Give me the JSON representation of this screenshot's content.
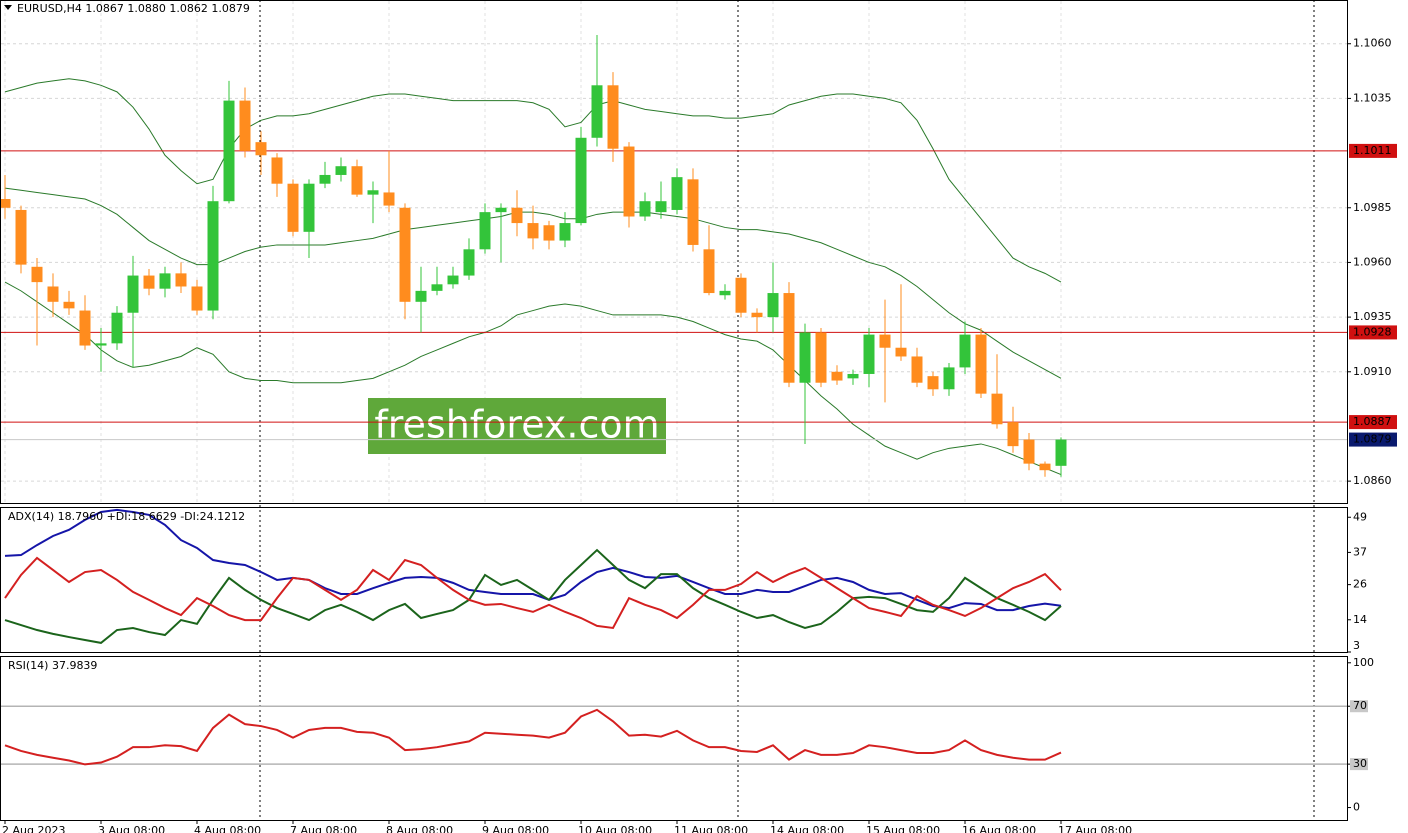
{
  "chart_data": [
    {
      "type": "candlestick",
      "title": "EURUSD,H4  1.0867 1.0880 1.0862 1.0879",
      "annotation": "freshforex.com",
      "categories": [
        "2 Aug 2023",
        null,
        null,
        null,
        null,
        null,
        "3 Aug 08:00",
        null,
        null,
        null,
        null,
        null,
        "4 Aug 08:00",
        null,
        null,
        null,
        null,
        null,
        "7 Aug 08:00",
        null,
        null,
        null,
        null,
        null,
        "8 Aug 08:00",
        null,
        null,
        null,
        null,
        null,
        "9 Aug 08:00",
        null,
        null,
        null,
        null,
        null,
        "10 Aug 08:00",
        null,
        null,
        null,
        null,
        null,
        "11 Aug 08:00",
        null,
        null,
        null,
        null,
        null,
        "14 Aug 08:00",
        null,
        null,
        null,
        null,
        null,
        "15 Aug 08:00",
        null,
        null,
        null,
        null,
        null,
        "16 Aug 08:00",
        null,
        null,
        null,
        null,
        null,
        "17 Aug 08:00"
      ],
      "open": [
        1.0989,
        1.0984,
        1.0958,
        1.0949,
        1.0942,
        1.0938,
        1.0922,
        1.0923,
        1.0937,
        1.0954,
        1.0948,
        1.0955,
        1.0949,
        1.0938,
        1.0988,
        1.1034,
        1.1015,
        1.1008,
        1.0996,
        1.0974,
        1.0996,
        1.1,
        1.1004,
        1.0991,
        1.0992,
        1.0985,
        1.0942,
        1.0947,
        1.095,
        1.0954,
        1.0966,
        1.0983,
        1.0985,
        1.0978,
        1.0977,
        1.097,
        1.0978,
        1.1017,
        1.1041,
        1.1013,
        1.0981,
        1.0983,
        1.0984,
        1.0998,
        1.0966,
        1.0945,
        1.0953,
        1.0937,
        1.0935,
        1.0946,
        1.0905,
        1.0928,
        1.091,
        1.0907,
        1.0909,
        1.0927,
        1.0921,
        1.0917,
        1.0908,
        1.0902,
        1.0912,
        1.0927,
        1.09,
        1.0887,
        1.0879,
        1.0868,
        1.0867
      ],
      "high": [
        1.1,
        1.0986,
        1.0962,
        1.0955,
        1.0947,
        1.0945,
        1.093,
        1.094,
        1.0963,
        1.0957,
        1.0958,
        1.096,
        1.0952,
        1.0995,
        1.1043,
        1.104,
        1.102,
        1.101,
        1.0998,
        1.0998,
        1.1006,
        1.1008,
        1.1007,
        1.0997,
        1.1011,
        1.0987,
        1.0958,
        1.0958,
        1.0958,
        1.0971,
        1.0987,
        1.0987,
        1.0993,
        1.0986,
        1.0979,
        1.0983,
        1.1022,
        1.1064,
        1.1047,
        1.1015,
        1.0992,
        1.0997,
        1.1003,
        1.1003,
        1.0977,
        1.095,
        1.0955,
        1.0939,
        1.096,
        1.0951,
        1.0932,
        1.093,
        1.0913,
        1.0911,
        1.093,
        1.0943,
        1.095,
        1.0921,
        1.091,
        1.0914,
        1.0933,
        1.093,
        1.0918,
        1.0894,
        1.0882,
        1.0869,
        1.088
      ],
      "low": [
        1.098,
        1.0955,
        1.0922,
        1.0935,
        1.0936,
        1.092,
        1.091,
        1.092,
        1.0912,
        1.0945,
        1.0944,
        1.0946,
        1.0936,
        1.0934,
        1.0987,
        1.1008,
        1.1,
        1.099,
        1.0972,
        1.0962,
        1.0994,
        1.0997,
        1.099,
        1.0978,
        1.0983,
        1.0934,
        1.0928,
        1.0945,
        1.0948,
        1.0952,
        1.0964,
        1.096,
        1.0972,
        1.0966,
        1.0966,
        1.0967,
        1.0977,
        1.1013,
        1.1006,
        1.0976,
        1.0979,
        1.098,
        1.0982,
        1.0965,
        1.0945,
        1.0943,
        1.0935,
        1.0928,
        1.0928,
        1.0903,
        1.0877,
        1.0903,
        1.0904,
        1.0904,
        1.0903,
        1.0896,
        1.0915,
        1.0903,
        1.0899,
        1.0899,
        1.0909,
        1.0898,
        1.0884,
        1.0873,
        1.0865,
        1.0862,
        1.0862
      ],
      "close": [
        1.0985,
        1.0959,
        1.0951,
        1.0942,
        1.0939,
        1.0922,
        1.0923,
        1.0937,
        1.0954,
        1.0948,
        1.0955,
        1.0949,
        1.0938,
        1.0988,
        1.1034,
        1.1011,
        1.1009,
        1.0996,
        1.0974,
        1.0996,
        1.1,
        1.1004,
        1.0991,
        1.0993,
        1.0986,
        1.0942,
        1.0947,
        1.095,
        1.0954,
        1.0966,
        1.0983,
        1.0985,
        1.0978,
        1.0971,
        1.097,
        1.0978,
        1.1017,
        1.1041,
        1.1012,
        1.0981,
        1.0988,
        1.0988,
        1.0999,
        1.0968,
        1.0946,
        1.0947,
        1.0937,
        1.0935,
        1.0946,
        1.0905,
        1.0928,
        1.0905,
        1.0906,
        1.0909,
        1.0927,
        1.0921,
        1.0917,
        1.0905,
        1.0902,
        1.0912,
        1.0927,
        1.09,
        1.0886,
        1.0876,
        1.0868,
        1.0865,
        1.0879
      ],
      "up_color": "#33c43a",
      "down_color": "#ff8c1e",
      "bands": [
        {
          "color": "#2a7a2a",
          "values": [
            1.1038,
            1.104,
            1.1042,
            1.1043,
            1.1044,
            1.1043,
            1.1041,
            1.1038,
            1.1031,
            1.1021,
            1.1009,
            1.1002,
            1.0996,
            1.0998,
            1.1012,
            1.1021,
            1.1025,
            1.1027,
            1.1027,
            1.1028,
            1.103,
            1.1032,
            1.1034,
            1.1036,
            1.1037,
            1.1037,
            1.1036,
            1.1035,
            1.1034,
            1.1034,
            1.1034,
            1.1034,
            1.1034,
            1.1033,
            1.103,
            1.1022,
            1.1024,
            1.1032,
            1.1034,
            1.1032,
            1.103,
            1.1029,
            1.1028,
            1.1027,
            1.1027,
            1.1026,
            1.1026,
            1.1027,
            1.1028,
            1.1032,
            1.1034,
            1.1036,
            1.1037,
            1.1037,
            1.1036,
            1.1035,
            1.1033,
            1.1025,
            1.1012,
            1.0998,
            1.0989,
            1.098,
            1.0971,
            1.0962,
            1.0958,
            1.0955,
            1.0951
          ]
        },
        {
          "color": "#2a7a2a",
          "values": [
            1.0994,
            1.0993,
            1.0992,
            1.0991,
            1.099,
            1.0989,
            1.0986,
            1.0982,
            1.0976,
            1.097,
            1.0966,
            1.0962,
            1.0959,
            1.0959,
            1.0962,
            1.0965,
            1.0967,
            1.0968,
            1.0968,
            1.0968,
            1.0968,
            1.0969,
            1.097,
            1.0971,
            1.0973,
            1.0975,
            1.0976,
            1.0977,
            1.0978,
            1.0979,
            1.098,
            1.0981,
            1.0983,
            1.0983,
            1.0982,
            1.098,
            1.098,
            1.0982,
            1.0983,
            1.0983,
            1.0983,
            1.0982,
            1.0981,
            1.098,
            1.0978,
            1.0976,
            1.0975,
            1.0975,
            1.0974,
            1.0973,
            1.0971,
            1.0969,
            1.0966,
            1.0963,
            1.096,
            1.0958,
            1.0954,
            1.0949,
            1.0943,
            1.0937,
            1.0932,
            1.0929,
            1.0924,
            1.0919,
            1.0915,
            1.0911,
            1.0907
          ]
        },
        {
          "color": "#2a7a2a",
          "values": [
            1.0951,
            1.0947,
            1.0942,
            1.0937,
            1.0932,
            1.0927,
            1.092,
            1.0915,
            1.0912,
            1.0913,
            1.0915,
            1.0917,
            1.0921,
            1.0918,
            1.091,
            1.0907,
            1.0906,
            1.0906,
            1.0905,
            1.0905,
            1.0905,
            1.0905,
            1.0906,
            1.0907,
            1.091,
            1.0913,
            1.0917,
            1.092,
            1.0923,
            1.0926,
            1.0928,
            1.0931,
            1.0936,
            1.0938,
            1.094,
            1.0941,
            1.094,
            1.0938,
            1.0936,
            1.0936,
            1.0936,
            1.0936,
            1.0935,
            1.0933,
            1.093,
            1.0927,
            1.0925,
            1.0924,
            1.092,
            1.0913,
            1.0906,
            1.0899,
            1.0893,
            1.0886,
            1.0881,
            1.0876,
            1.0873,
            1.087,
            1.0873,
            1.0875,
            1.0876,
            1.0877,
            1.0875,
            1.0872,
            1.0869,
            1.0866,
            1.0863
          ]
        }
      ],
      "ylim": [
        1.085,
        1.108
      ],
      "yticks": [
        {
          "value": 1.106,
          "label": "1.1060"
        },
        1.1035,
        1.0985,
        {
          "value": 1.096,
          "label": "1.0960"
        },
        1.0935,
        {
          "value": 1.091,
          "label": "1.0910"
        },
        {
          "value": 1.086,
          "label": "1.0860"
        }
      ],
      "grid": true,
      "levels": [
        1.1011,
        1.0928,
        1.0887
      ],
      "level_color": "#d01010",
      "last_price": 1.0879,
      "last_price_color": "#0a1a6e"
    },
    {
      "type": "line",
      "title": "ADX(14) 18.7960 +DI:18.6629 -DI:24.1212",
      "series": [
        {
          "color": "#1515a8",
          "values": [
            35.8,
            36.1,
            39.5,
            42.6,
            44.7,
            48.1,
            50.8,
            51.5,
            50.8,
            49.8,
            46.4,
            41.2,
            38.5,
            34.4,
            33.4,
            32.7,
            30.3,
            27.6,
            28.3,
            27.6,
            24.8,
            22.8,
            22.8,
            24.8,
            26.6,
            28.3,
            28.6,
            28.3,
            26.6,
            24.2,
            23.5,
            22.8,
            22.8,
            22.8,
            20.8,
            22.5,
            26.9,
            30.3,
            31.7,
            30.3,
            28.6,
            28.3,
            29.0,
            26.9,
            24.8,
            22.8,
            22.8,
            24.2,
            23.5,
            23.5,
            25.5,
            27.6,
            28.3,
            26.9,
            24.2,
            22.8,
            23.1,
            20.8,
            18.7,
            18.0,
            19.7,
            19.4,
            17.3,
            17.3,
            18.7,
            19.5,
            18.8
          ]
        },
        {
          "color": "#1b641b",
          "values": [
            13.9,
            12.2,
            10.5,
            9.2,
            8.1,
            7.1,
            6.1,
            10.5,
            11.2,
            9.8,
            8.8,
            13.9,
            12.6,
            20.8,
            28.3,
            24.2,
            20.8,
            18.0,
            16.0,
            13.9,
            17.3,
            19.1,
            16.7,
            13.9,
            17.3,
            19.4,
            14.6,
            16.0,
            17.3,
            20.8,
            29.3,
            25.9,
            27.6,
            24.2,
            20.8,
            27.6,
            32.7,
            37.8,
            32.7,
            27.6,
            24.8,
            29.6,
            29.6,
            24.8,
            21.4,
            19.1,
            16.7,
            14.6,
            15.6,
            13.2,
            11.2,
            12.6,
            16.7,
            21.4,
            21.8,
            21.4,
            19.4,
            17.3,
            16.7,
            21.4,
            28.3,
            24.8,
            21.4,
            19.1,
            16.7,
            13.9,
            18.7
          ]
        },
        {
          "color": "#d42020",
          "values": [
            21.4,
            29.3,
            35.1,
            31.0,
            26.9,
            30.3,
            31.0,
            27.6,
            23.5,
            20.8,
            18.0,
            15.6,
            21.4,
            18.7,
            15.6,
            13.9,
            13.9,
            21.4,
            28.3,
            27.6,
            24.2,
            20.8,
            24.2,
            31.0,
            27.6,
            34.4,
            32.7,
            28.3,
            24.2,
            20.8,
            19.1,
            19.4,
            18.0,
            16.7,
            19.1,
            16.7,
            14.6,
            11.9,
            11.2,
            21.4,
            19.1,
            17.3,
            14.6,
            19.1,
            24.2,
            24.2,
            26.2,
            30.3,
            26.9,
            29.6,
            31.7,
            28.3,
            24.8,
            21.4,
            18.0,
            16.7,
            15.3,
            22.1,
            19.1,
            17.3,
            15.3,
            18.0,
            21.4,
            24.8,
            26.9,
            29.6,
            24.1
          ]
        }
      ],
      "ylim": [
        3,
        52.5
      ],
      "yticks": [
        49,
        37,
        26,
        14,
        3
      ]
    },
    {
      "type": "line",
      "title": "RSI(14) 37.9839",
      "series": [
        {
          "color": "#d42020",
          "values": [
            43.0,
            39.1,
            36.4,
            34.4,
            32.5,
            29.8,
            31.1,
            35.1,
            41.7,
            41.7,
            43.0,
            42.4,
            39.1,
            55.0,
            64.2,
            57.6,
            56.3,
            53.6,
            48.3,
            53.6,
            55.0,
            55.0,
            52.3,
            51.7,
            48.3,
            39.7,
            40.4,
            41.7,
            43.7,
            45.7,
            51.7,
            51.0,
            50.3,
            49.7,
            48.3,
            51.7,
            62.9,
            67.5,
            59.6,
            49.7,
            50.3,
            49.0,
            53.0,
            46.4,
            41.7,
            41.7,
            39.1,
            38.4,
            43.0,
            33.1,
            39.7,
            36.4,
            36.4,
            37.7,
            43.0,
            41.7,
            39.7,
            37.7,
            37.7,
            39.7,
            46.4,
            39.7,
            36.4,
            34.4,
            33.1,
            33.1,
            38.0
          ]
        }
      ],
      "ylim": [
        -8.6,
        104
      ],
      "yticks": [
        100,
        70,
        30,
        0
      ],
      "levels": [
        70,
        30
      ],
      "level_color": "#b4b4b4"
    }
  ]
}
